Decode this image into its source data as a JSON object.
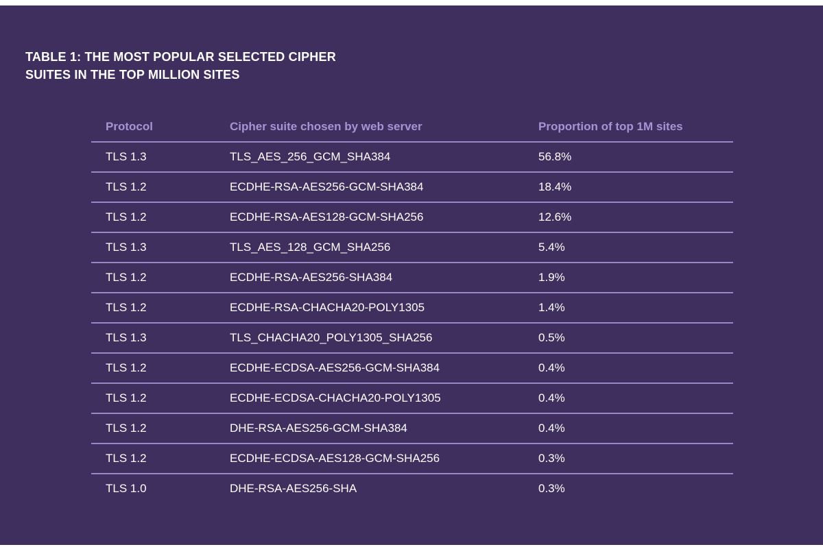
{
  "title": [
    "TABLE 1: THE MOST POPULAR SELECTED CIPHER",
    "SUITES IN THE TOP MILLION SITES"
  ],
  "headers": [
    "Protocol",
    "Cipher suite chosen by web server",
    "Proportion of top 1M sites"
  ],
  "rows": [
    [
      "TLS 1.3",
      "TLS_AES_256_GCM_SHA384",
      "56.8%"
    ],
    [
      "TLS 1.2",
      "ECDHE-RSA-AES256-GCM-SHA384",
      "18.4%"
    ],
    [
      "TLS 1.2",
      "ECDHE-RSA-AES128-GCM-SHA256",
      "12.6%"
    ],
    [
      "TLS 1.3",
      "TLS_AES_128_GCM_SHA256",
      "5.4%"
    ],
    [
      "TLS 1.2",
      "ECDHE-RSA-AES256-SHA384",
      "1.9%"
    ],
    [
      "TLS 1.2",
      "ECDHE-RSA-CHACHA20-POLY1305",
      "1.4%"
    ],
    [
      "TLS 1.3",
      "TLS_CHACHA20_POLY1305_SHA256",
      "0.5%"
    ],
    [
      "TLS 1.2",
      "ECDHE-ECDSA-AES256-GCM-SHA384",
      "0.4%"
    ],
    [
      "TLS 1.2",
      "ECDHE-ECDSA-CHACHA20-POLY1305",
      "0.4%"
    ],
    [
      "TLS 1.2",
      "DHE-RSA-AES256-GCM-SHA384",
      "0.4%"
    ],
    [
      "TLS 1.2",
      "ECDHE-ECDSA-AES128-GCM-SHA256",
      "0.3%"
    ],
    [
      "TLS 1.0",
      "DHE-RSA-AES256-SHA",
      "0.3%"
    ]
  ]
}
